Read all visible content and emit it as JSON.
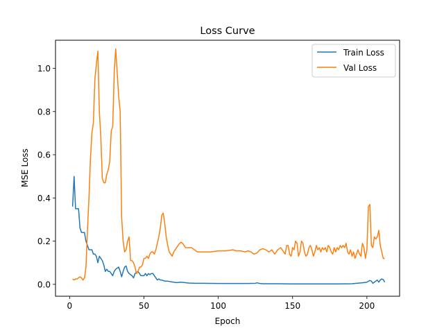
{
  "chart_data": {
    "type": "line",
    "title": "Loss Curve",
    "xlabel": "Epoch",
    "ylabel": "MSE Loss",
    "xlim": [
      -9.5,
      222
    ],
    "ylim": [
      -0.055,
      1.13
    ],
    "xticks": [
      0,
      50,
      100,
      150,
      200
    ],
    "xtick_labels": [
      "0",
      "50",
      "100",
      "150",
      "200"
    ],
    "yticks": [
      0.0,
      0.2,
      0.4,
      0.6,
      0.8,
      1.0
    ],
    "ytick_labels": [
      "0.0",
      "0.2",
      "0.4",
      "0.6",
      "0.8",
      "1.0"
    ],
    "grid": false,
    "legend_position": "top-right",
    "series": [
      {
        "name": "Train Loss",
        "color": "#1f77b4",
        "points": [
          [
            2,
            0.36
          ],
          [
            3,
            0.5
          ],
          [
            4,
            0.35
          ],
          [
            5,
            0.35
          ],
          [
            6,
            0.35
          ],
          [
            7,
            0.26
          ],
          [
            8,
            0.24
          ],
          [
            9,
            0.24
          ],
          [
            10,
            0.24
          ],
          [
            11,
            0.2
          ],
          [
            12,
            0.18
          ],
          [
            13,
            0.16
          ],
          [
            14,
            0.16
          ],
          [
            15,
            0.16
          ],
          [
            16,
            0.14
          ],
          [
            17,
            0.14
          ],
          [
            18,
            0.13
          ],
          [
            19,
            0.1
          ],
          [
            20,
            0.13
          ],
          [
            21,
            0.12
          ],
          [
            22,
            0.11
          ],
          [
            23,
            0.09
          ],
          [
            24,
            0.06
          ],
          [
            25,
            0.07
          ],
          [
            26,
            0.06
          ],
          [
            27,
            0.06
          ],
          [
            28,
            0.05
          ],
          [
            29,
            0.04
          ],
          [
            30,
            0.06
          ],
          [
            31,
            0.07
          ],
          [
            32,
            0.075
          ],
          [
            33,
            0.08
          ],
          [
            34,
            0.06
          ],
          [
            35,
            0.035
          ],
          [
            36,
            0.06
          ],
          [
            37,
            0.08
          ],
          [
            38,
            0.085
          ],
          [
            39,
            0.06
          ],
          [
            40,
            0.05
          ],
          [
            41,
            0.045
          ],
          [
            42,
            0.04
          ],
          [
            43,
            0.03
          ],
          [
            44,
            0.05
          ],
          [
            45,
            0.055
          ],
          [
            46,
            0.06
          ],
          [
            47,
            0.05
          ],
          [
            48,
            0.04
          ],
          [
            49,
            0.04
          ],
          [
            50,
            0.04
          ],
          [
            51,
            0.05
          ],
          [
            52,
            0.04
          ],
          [
            53,
            0.05
          ],
          [
            54,
            0.045
          ],
          [
            55,
            0.05
          ],
          [
            56,
            0.05
          ],
          [
            57,
            0.04
          ],
          [
            58,
            0.03
          ],
          [
            59,
            0.02
          ],
          [
            60,
            0.025
          ],
          [
            61,
            0.02
          ],
          [
            62,
            0.02
          ],
          [
            64,
            0.015
          ],
          [
            66,
            0.015
          ],
          [
            68,
            0.012
          ],
          [
            70,
            0.01
          ],
          [
            72,
            0.008
          ],
          [
            75,
            0.01
          ],
          [
            80,
            0.006
          ],
          [
            85,
            0.005
          ],
          [
            90,
            0.005
          ],
          [
            100,
            0.004
          ],
          [
            110,
            0.004
          ],
          [
            120,
            0.004
          ],
          [
            125,
            0.005
          ],
          [
            126,
            0.007
          ],
          [
            128,
            0.004
          ],
          [
            130,
            0.003
          ],
          [
            140,
            0.003
          ],
          [
            150,
            0.002
          ],
          [
            160,
            0.002
          ],
          [
            170,
            0.002
          ],
          [
            180,
            0.002
          ],
          [
            190,
            0.003
          ],
          [
            195,
            0.006
          ],
          [
            198,
            0.008
          ],
          [
            200,
            0.01
          ],
          [
            202,
            0.018
          ],
          [
            203,
            0.015
          ],
          [
            204,
            0.005
          ],
          [
            205,
            0.01
          ],
          [
            206,
            0.015
          ],
          [
            207,
            0.02
          ],
          [
            208,
            0.01
          ],
          [
            209,
            0.02
          ],
          [
            210,
            0.025
          ],
          [
            211,
            0.022
          ],
          [
            212,
            0.01
          ]
        ]
      },
      {
        "name": "Val Loss",
        "color": "#ff7f0e",
        "points": [
          [
            2,
            0.025
          ],
          [
            3,
            0.02
          ],
          [
            4,
            0.025
          ],
          [
            5,
            0.025
          ],
          [
            6,
            0.03
          ],
          [
            7,
            0.035
          ],
          [
            8,
            0.03
          ],
          [
            9,
            0.02
          ],
          [
            10,
            0.03
          ],
          [
            11,
            0.08
          ],
          [
            12,
            0.25
          ],
          [
            13,
            0.4
          ],
          [
            14,
            0.58
          ],
          [
            15,
            0.7
          ],
          [
            16,
            0.75
          ],
          [
            17,
            0.95
          ],
          [
            18,
            1.02
          ],
          [
            19,
            1.08
          ],
          [
            20,
            0.8
          ],
          [
            21,
            0.68
          ],
          [
            22,
            0.49
          ],
          [
            23,
            0.47
          ],
          [
            24,
            0.47
          ],
          [
            25,
            0.51
          ],
          [
            26,
            0.53
          ],
          [
            27,
            0.57
          ],
          [
            28,
            0.71
          ],
          [
            29,
            0.73
          ],
          [
            30,
            0.98
          ],
          [
            31,
            1.09
          ],
          [
            32,
            0.98
          ],
          [
            33,
            0.87
          ],
          [
            34,
            0.8
          ],
          [
            35,
            0.31
          ],
          [
            36,
            0.2
          ],
          [
            37,
            0.15
          ],
          [
            38,
            0.16
          ],
          [
            39,
            0.2
          ],
          [
            40,
            0.22
          ],
          [
            41,
            0.11
          ],
          [
            42,
            0.11
          ],
          [
            43,
            0.1
          ],
          [
            44,
            0.08
          ],
          [
            45,
            0.05
          ],
          [
            46,
            0.06
          ],
          [
            47,
            0.08
          ],
          [
            48,
            0.08
          ],
          [
            49,
            0.09
          ],
          [
            50,
            0.12
          ],
          [
            51,
            0.12
          ],
          [
            52,
            0.13
          ],
          [
            53,
            0.12
          ],
          [
            54,
            0.14
          ],
          [
            55,
            0.15
          ],
          [
            56,
            0.15
          ],
          [
            57,
            0.14
          ],
          [
            58,
            0.16
          ],
          [
            59,
            0.19
          ],
          [
            60,
            0.22
          ],
          [
            61,
            0.26
          ],
          [
            62,
            0.32
          ],
          [
            63,
            0.33
          ],
          [
            64,
            0.28
          ],
          [
            65,
            0.22
          ],
          [
            66,
            0.18
          ],
          [
            67,
            0.15
          ],
          [
            68,
            0.14
          ],
          [
            69,
            0.13
          ],
          [
            70,
            0.15
          ],
          [
            71,
            0.16
          ],
          [
            72,
            0.17
          ],
          [
            73,
            0.18
          ],
          [
            74,
            0.19
          ],
          [
            75,
            0.195
          ],
          [
            76,
            0.19
          ],
          [
            77,
            0.18
          ],
          [
            78,
            0.17
          ],
          [
            80,
            0.17
          ],
          [
            82,
            0.17
          ],
          [
            84,
            0.16
          ],
          [
            86,
            0.15
          ],
          [
            88,
            0.15
          ],
          [
            90,
            0.15
          ],
          [
            95,
            0.15
          ],
          [
            100,
            0.155
          ],
          [
            105,
            0.155
          ],
          [
            110,
            0.16
          ],
          [
            112,
            0.155
          ],
          [
            115,
            0.155
          ],
          [
            118,
            0.15
          ],
          [
            120,
            0.155
          ],
          [
            122,
            0.15
          ],
          [
            124,
            0.14
          ],
          [
            126,
            0.145
          ],
          [
            128,
            0.16
          ],
          [
            130,
            0.165
          ],
          [
            132,
            0.16
          ],
          [
            134,
            0.15
          ],
          [
            136,
            0.16
          ],
          [
            138,
            0.14
          ],
          [
            140,
            0.16
          ],
          [
            142,
            0.17
          ],
          [
            144,
            0.15
          ],
          [
            145,
            0.14
          ],
          [
            146,
            0.18
          ],
          [
            147,
            0.18
          ],
          [
            148,
            0.14
          ],
          [
            149,
            0.13
          ],
          [
            150,
            0.17
          ],
          [
            151,
            0.16
          ],
          [
            152,
            0.2
          ],
          [
            153,
            0.19
          ],
          [
            154,
            0.13
          ],
          [
            155,
            0.15
          ],
          [
            156,
            0.2
          ],
          [
            157,
            0.19
          ],
          [
            158,
            0.15
          ],
          [
            159,
            0.13
          ],
          [
            160,
            0.14
          ],
          [
            161,
            0.17
          ],
          [
            162,
            0.18
          ],
          [
            163,
            0.16
          ],
          [
            164,
            0.13
          ],
          [
            165,
            0.15
          ],
          [
            166,
            0.18
          ],
          [
            167,
            0.16
          ],
          [
            168,
            0.17
          ],
          [
            169,
            0.15
          ],
          [
            170,
            0.17
          ],
          [
            171,
            0.16
          ],
          [
            172,
            0.17
          ],
          [
            173,
            0.15
          ],
          [
            174,
            0.18
          ],
          [
            175,
            0.17
          ],
          [
            176,
            0.15
          ],
          [
            177,
            0.14
          ],
          [
            178,
            0.17
          ],
          [
            179,
            0.15
          ],
          [
            180,
            0.17
          ],
          [
            181,
            0.16
          ],
          [
            182,
            0.18
          ],
          [
            183,
            0.17
          ],
          [
            184,
            0.18
          ],
          [
            185,
            0.17
          ],
          [
            186,
            0.19
          ],
          [
            187,
            0.15
          ],
          [
            188,
            0.14
          ],
          [
            189,
            0.16
          ],
          [
            190,
            0.13
          ],
          [
            191,
            0.15
          ],
          [
            192,
            0.12
          ],
          [
            193,
            0.14
          ],
          [
            194,
            0.16
          ],
          [
            195,
            0.14
          ],
          [
            196,
            0.13
          ],
          [
            197,
            0.19
          ],
          [
            198,
            0.17
          ],
          [
            199,
            0.12
          ],
          [
            200,
            0.16
          ],
          [
            201,
            0.36
          ],
          [
            202,
            0.37
          ],
          [
            203,
            0.18
          ],
          [
            204,
            0.17
          ],
          [
            205,
            0.22
          ],
          [
            206,
            0.21
          ],
          [
            207,
            0.22
          ],
          [
            208,
            0.25
          ],
          [
            209,
            0.18
          ],
          [
            210,
            0.15
          ],
          [
            211,
            0.12
          ],
          [
            212,
            0.12
          ]
        ]
      }
    ]
  }
}
